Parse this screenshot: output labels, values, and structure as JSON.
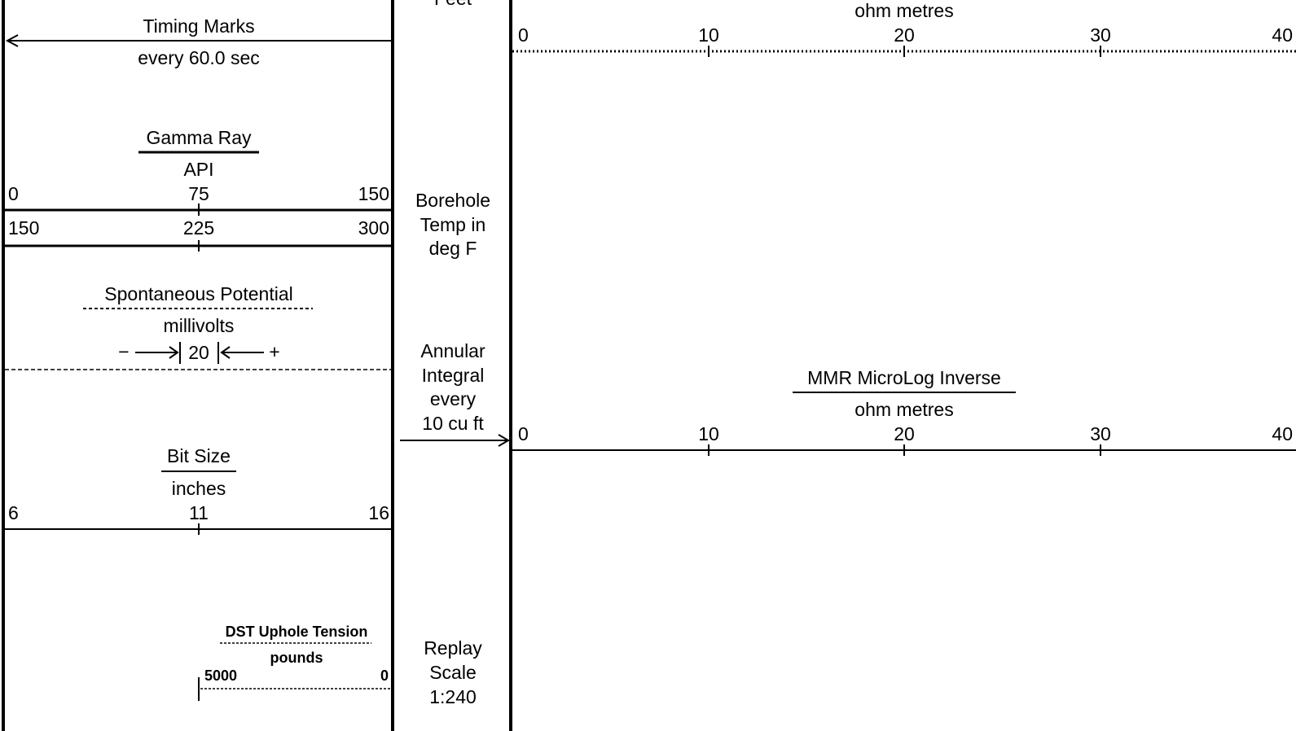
{
  "track1": {
    "timing": {
      "title": "Timing Marks",
      "interval": "every 60.0 sec"
    },
    "gamma_ray": {
      "title": "Gamma Ray",
      "unit": "API",
      "scale_primary": {
        "left": "0",
        "mid": "75",
        "right": "150"
      },
      "scale_backup": {
        "left": "150",
        "mid": "225",
        "right": "300"
      }
    },
    "spontaneous_potential": {
      "title": "Spontaneous Potential",
      "unit": "millivolts",
      "scale": {
        "minus": "−",
        "value": "20",
        "plus": "+"
      }
    },
    "bit_size": {
      "title": "Bit Size",
      "unit": "inches",
      "scale": {
        "left": "6",
        "mid": "11",
        "right": "16"
      }
    },
    "dst_uphole_tension": {
      "title": "DST Uphole Tension",
      "unit": "pounds",
      "scale": {
        "left": "5000",
        "right": "0"
      }
    }
  },
  "depth_track": {
    "units": "Feet",
    "borehole_temp": [
      "Borehole",
      "Temp in",
      "deg F"
    ],
    "annular_integral": [
      "Annular",
      "Integral",
      "every",
      "10 cu ft"
    ],
    "replay_scale": [
      "Replay",
      "Scale",
      "1:240"
    ]
  },
  "track2": {
    "upper_curve": {
      "unit": "ohm metres",
      "scale": [
        "0",
        "10",
        "20",
        "30",
        "40"
      ]
    },
    "micro_inverse": {
      "title": "MMR MicroLog Inverse",
      "unit": "ohm metres",
      "scale": [
        "0",
        "10",
        "20",
        "30",
        "40"
      ]
    }
  }
}
